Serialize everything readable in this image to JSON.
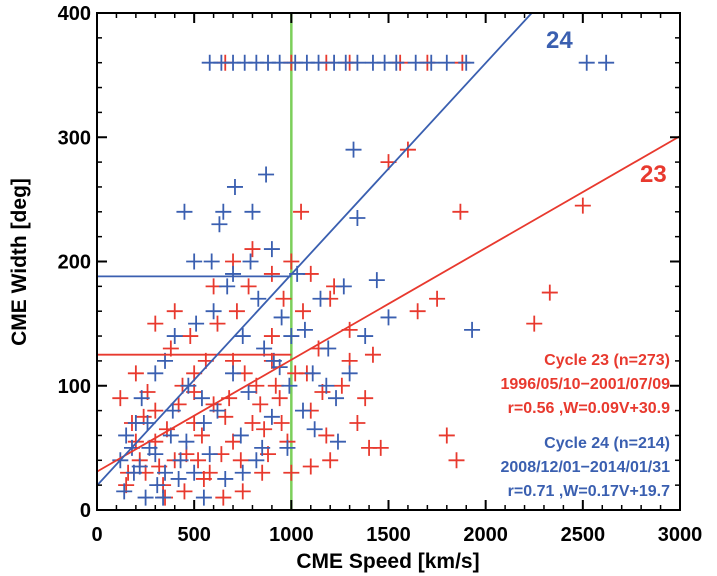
{
  "chart_data": {
    "type": "scatter",
    "xlabel": "CME Speed [km/s]",
    "ylabel": "CME Width [deg]",
    "xlim": [
      0,
      3000
    ],
    "ylim": [
      0,
      400
    ],
    "xticks": [
      "0",
      "500",
      "1000",
      "1500",
      "2000",
      "2500",
      "3000"
    ],
    "yticks": [
      "0",
      "100",
      "200",
      "300",
      "400"
    ],
    "grid": false,
    "vertical_line": {
      "x": 1000,
      "color": "#7ccf5a"
    },
    "series": [
      {
        "name": "Cycle 23 (n=273)",
        "color": "#e8392e",
        "date_range": "1996/05/10−2001/07/09",
        "fit_text": "r=0.56 ,W=0.09V+30.9",
        "fit_label": "23",
        "fit": {
          "slope": 0.09,
          "intercept": 30.9
        },
        "plateau": 125,
        "points": [
          [
            660,
            360
          ],
          [
            1000,
            360
          ],
          [
            1180,
            360
          ],
          [
            1300,
            360
          ],
          [
            1560,
            360
          ],
          [
            1700,
            360
          ],
          [
            1880,
            360
          ],
          [
            180,
            70
          ],
          [
            220,
            40
          ],
          [
            260,
            95
          ],
          [
            300,
            55
          ],
          [
            340,
            20
          ],
          [
            380,
            130
          ],
          [
            420,
            85
          ],
          [
            460,
            45
          ],
          [
            500,
            110
          ],
          [
            540,
            60
          ],
          [
            580,
            30
          ],
          [
            620,
            150
          ],
          [
            660,
            75
          ],
          [
            700,
            120
          ],
          [
            740,
            40
          ],
          [
            780,
            180
          ],
          [
            820,
            100
          ],
          [
            860,
            65
          ],
          [
            900,
            140
          ],
          [
            940,
            90
          ],
          [
            980,
            55
          ],
          [
            1020,
            110
          ],
          [
            1060,
            160
          ],
          [
            1100,
            80
          ],
          [
            1140,
            130
          ],
          [
            1180,
            60
          ],
          [
            1220,
            180
          ],
          [
            1260,
            100
          ],
          [
            1300,
            145
          ],
          [
            1340,
            70
          ],
          [
            1380,
            90
          ],
          [
            1420,
            125
          ],
          [
            1460,
            50
          ],
          [
            1500,
            280
          ],
          [
            1600,
            290
          ],
          [
            1650,
            160
          ],
          [
            1750,
            170
          ],
          [
            1800,
            60
          ],
          [
            1850,
            40
          ],
          [
            1870,
            240
          ],
          [
            2250,
            150
          ],
          [
            2330,
            175
          ],
          [
            2500,
            245
          ],
          [
            1050,
            240
          ],
          [
            950,
            70
          ],
          [
            850,
            30
          ],
          [
            750,
            15
          ],
          [
            650,
            10
          ],
          [
            550,
            25
          ],
          [
            450,
            15
          ],
          [
            350,
            10
          ],
          [
            250,
            30
          ],
          [
            150,
            20
          ],
          [
            200,
            110
          ],
          [
            300,
            150
          ],
          [
            400,
            160
          ],
          [
            500,
            95
          ],
          [
            600,
            180
          ],
          [
            700,
            200
          ],
          [
            800,
            210
          ],
          [
            900,
            190
          ],
          [
            1000,
            200
          ],
          [
            1100,
            190
          ],
          [
            1200,
            170
          ],
          [
            1300,
            120
          ],
          [
            1400,
            50
          ],
          [
            1200,
            40
          ],
          [
            1100,
            35
          ],
          [
            1000,
            30
          ],
          [
            900,
            120
          ],
          [
            800,
            70
          ],
          [
            700,
            55
          ],
          [
            600,
            85
          ],
          [
            500,
            70
          ],
          [
            400,
            40
          ],
          [
            300,
            80
          ],
          [
            200,
            55
          ],
          [
            120,
            90
          ],
          [
            160,
            30
          ],
          [
            240,
            75
          ],
          [
            320,
            35
          ],
          [
            360,
            65
          ],
          [
            440,
            100
          ],
          [
            480,
            140
          ],
          [
            520,
            40
          ],
          [
            560,
            120
          ],
          [
            640,
            45
          ],
          [
            680,
            90
          ],
          [
            720,
            160
          ],
          [
            760,
            110
          ],
          [
            840,
            85
          ],
          [
            880,
            45
          ],
          [
            920,
            100
          ],
          [
            960,
            170
          ],
          [
            1080,
            110
          ],
          [
            1160,
            95
          ]
        ]
      },
      {
        "name": "Cycle 24 (n=214)",
        "color": "#3a5fb0",
        "date_range": "2008/12/01−2014/01/31",
        "fit_text": "r=0.71 ,W=0.17V+19.7",
        "fit_label": "24",
        "fit": {
          "slope": 0.17,
          "intercept": 19.7
        },
        "plateau": 188,
        "points": [
          [
            580,
            360
          ],
          [
            640,
            360
          ],
          [
            700,
            360
          ],
          [
            760,
            360
          ],
          [
            820,
            360
          ],
          [
            880,
            360
          ],
          [
            940,
            360
          ],
          [
            1020,
            360
          ],
          [
            1080,
            360
          ],
          [
            1140,
            360
          ],
          [
            1220,
            360
          ],
          [
            1280,
            360
          ],
          [
            1340,
            360
          ],
          [
            1420,
            360
          ],
          [
            1480,
            360
          ],
          [
            1540,
            360
          ],
          [
            1640,
            360
          ],
          [
            1720,
            360
          ],
          [
            1800,
            360
          ],
          [
            1900,
            360
          ],
          [
            2520,
            360
          ],
          [
            2620,
            360
          ],
          [
            150,
            60
          ],
          [
            190,
            30
          ],
          [
            230,
            90
          ],
          [
            270,
            50
          ],
          [
            310,
            20
          ],
          [
            350,
            120
          ],
          [
            390,
            80
          ],
          [
            430,
            40
          ],
          [
            470,
            100
          ],
          [
            510,
            150
          ],
          [
            550,
            70
          ],
          [
            590,
            200
          ],
          [
            630,
            230
          ],
          [
            670,
            180
          ],
          [
            710,
            260
          ],
          [
            750,
            140
          ],
          [
            790,
            200
          ],
          [
            830,
            170
          ],
          [
            870,
            270
          ],
          [
            910,
            120
          ],
          [
            950,
            155
          ],
          [
            990,
            100
          ],
          [
            1030,
            190
          ],
          [
            1070,
            145
          ],
          [
            1110,
            110
          ],
          [
            1150,
            170
          ],
          [
            1190,
            130
          ],
          [
            1230,
            90
          ],
          [
            1270,
            180
          ],
          [
            1320,
            290
          ],
          [
            1340,
            235
          ],
          [
            1440,
            185
          ],
          [
            1500,
            155
          ],
          [
            1930,
            145
          ],
          [
            1000,
            140
          ],
          [
            900,
            210
          ],
          [
            800,
            240
          ],
          [
            700,
            190
          ],
          [
            600,
            160
          ],
          [
            500,
            200
          ],
          [
            400,
            140
          ],
          [
            300,
            110
          ],
          [
            200,
            70
          ],
          [
            120,
            40
          ],
          [
            140,
            15
          ],
          [
            180,
            50
          ],
          [
            220,
            35
          ],
          [
            260,
            70
          ],
          [
            300,
            45
          ],
          [
            340,
            10
          ],
          [
            380,
            60
          ],
          [
            420,
            25
          ],
          [
            460,
            55
          ],
          [
            500,
            30
          ],
          [
            540,
            90
          ],
          [
            580,
            45
          ],
          [
            620,
            80
          ],
          [
            660,
            25
          ],
          [
            700,
            110
          ],
          [
            740,
            60
          ],
          [
            780,
            95
          ],
          [
            820,
            40
          ],
          [
            860,
            130
          ],
          [
            900,
            75
          ],
          [
            940,
            115
          ],
          [
            980,
            50
          ],
          [
            1060,
            80
          ],
          [
            1120,
            65
          ],
          [
            1180,
            100
          ],
          [
            1240,
            55
          ],
          [
            1300,
            110
          ],
          [
            1380,
            140
          ],
          [
            450,
            240
          ],
          [
            650,
            240
          ],
          [
            850,
            50
          ],
          [
            750,
            30
          ],
          [
            550,
            10
          ],
          [
            350,
            30
          ],
          [
            250,
            10
          ]
        ]
      }
    ]
  }
}
